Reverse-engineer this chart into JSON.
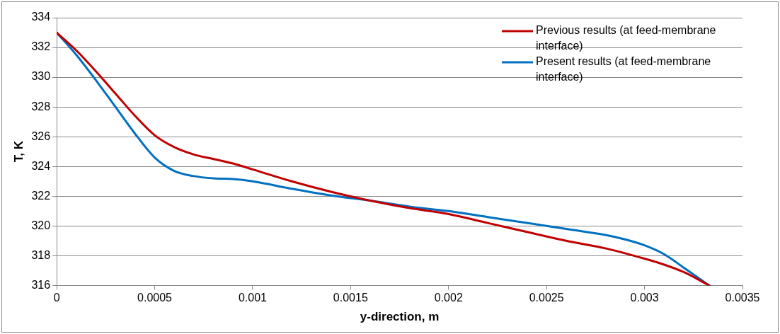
{
  "chart_data": {
    "type": "line",
    "xlabel": "y-direction, m",
    "ylabel": "T, K",
    "xlim": [
      0,
      0.0035
    ],
    "xticks": [
      0,
      0.0005,
      0.001,
      0.0015,
      0.002,
      0.0025,
      0.003,
      0.0035
    ],
    "ylim": [
      316,
      334
    ],
    "yticks": [
      316,
      318,
      320,
      322,
      324,
      326,
      328,
      330,
      332,
      334
    ],
    "grid": "y",
    "legend": "top right",
    "marker": "none",
    "line_style": "solid",
    "series": [
      {
        "name": "Previous results (at feed-membrane interface)",
        "color": "#c00000",
        "x": [
          0,
          0.0001,
          0.0002,
          0.0003,
          0.0004,
          0.0005,
          0.0006,
          0.0007,
          0.0008,
          0.0009,
          0.001,
          0.0012,
          0.0014,
          0.0016,
          0.0018,
          0.002,
          0.0022,
          0.0024,
          0.0026,
          0.0028,
          0.003,
          0.0031,
          0.0032,
          0.00333
        ],
        "values": [
          333,
          331.8,
          330.4,
          328.9,
          327.4,
          326.1,
          325.3,
          324.8,
          324.5,
          324.2,
          323.8,
          323.0,
          322.3,
          321.7,
          321.2,
          320.8,
          320.2,
          319.6,
          319.0,
          318.5,
          317.8,
          317.4,
          316.9,
          316
        ]
      },
      {
        "name": "Present results (at feed-membrane interface)",
        "color": "#0070c0",
        "x": [
          0,
          0.0001,
          0.0002,
          0.0003,
          0.0004,
          0.0005,
          0.0006,
          0.0007,
          0.0008,
          0.0009,
          0.001,
          0.0012,
          0.0014,
          0.0016,
          0.0018,
          0.002,
          0.0022,
          0.0024,
          0.0026,
          0.0028,
          0.0029,
          0.003,
          0.0031,
          0.0032,
          0.00333
        ],
        "values": [
          333,
          331.5,
          329.8,
          328.0,
          326.2,
          324.6,
          323.7,
          323.35,
          323.2,
          323.15,
          323.0,
          322.5,
          322.05,
          321.7,
          321.3,
          321.0,
          320.6,
          320.2,
          319.8,
          319.4,
          319.1,
          318.7,
          318.1,
          317.2,
          316
        ]
      }
    ]
  }
}
